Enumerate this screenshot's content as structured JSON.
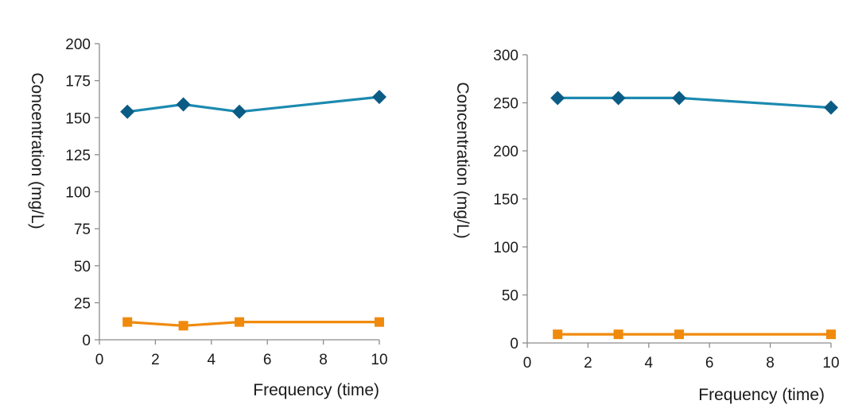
{
  "colors": {
    "series_blue_line": "#1C8AB0",
    "series_blue_marker": "#0B5C85",
    "series_orange": "#F08A0C",
    "axis": "#8c8c8c",
    "text": "#1a1a1a"
  },
  "chart_data": [
    {
      "type": "line",
      "xlabel": "Frequency (time)",
      "ylabel": "Concentration (mg/L)",
      "xlim": [
        0,
        10
      ],
      "ylim": [
        0,
        200
      ],
      "x_ticks": [
        "0",
        "2",
        "4",
        "6",
        "8",
        "10"
      ],
      "y_ticks": [
        "0",
        "25",
        "50",
        "75",
        "100",
        "125",
        "150",
        "175",
        "200"
      ],
      "grid": false,
      "legend": "none",
      "series": [
        {
          "marker": "diamond",
          "x": [
            1,
            3,
            5,
            10
          ],
          "y": [
            154,
            159,
            154,
            164
          ]
        },
        {
          "marker": "square",
          "x": [
            1,
            3,
            5,
            10
          ],
          "y": [
            12,
            9.5,
            12,
            12
          ]
        }
      ]
    },
    {
      "type": "line",
      "xlabel": "Frequency (time)",
      "ylabel": "Concentration (mg/L)",
      "xlim": [
        0,
        10
      ],
      "ylim": [
        0,
        300
      ],
      "x_ticks": [
        "0",
        "2",
        "4",
        "6",
        "8",
        "10"
      ],
      "y_ticks": [
        "0",
        "50",
        "100",
        "150",
        "200",
        "250",
        "300"
      ],
      "grid": false,
      "legend": "none",
      "series": [
        {
          "marker": "diamond",
          "x": [
            1,
            3,
            5,
            10
          ],
          "y": [
            255,
            255,
            255,
            245
          ]
        },
        {
          "marker": "square",
          "x": [
            1,
            3,
            5,
            10
          ],
          "y": [
            9,
            9,
            9,
            9
          ]
        }
      ]
    }
  ]
}
